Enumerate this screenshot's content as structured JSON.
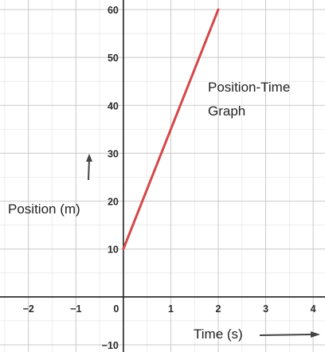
{
  "chart_data": {
    "type": "line",
    "title_lines": [
      "Position-Time",
      "Graph"
    ],
    "xlabel": "Time (s)",
    "ylabel": "Position (m)",
    "xlim": [
      -2.6,
      4.25
    ],
    "ylim": [
      -11.5,
      62
    ],
    "grid": true,
    "x_ticks": [
      -2,
      -1,
      0,
      1,
      2,
      3,
      4
    ],
    "x_tick_labels": [
      "−2",
      "−1",
      "0",
      "1",
      "2",
      "3",
      "4"
    ],
    "y_ticks": [
      -10,
      10,
      20,
      30,
      40,
      50,
      60
    ],
    "y_tick_labels": [
      "−10",
      "10",
      "20",
      "30",
      "40",
      "50",
      "60"
    ],
    "series": [
      {
        "x": [
          0,
          2
        ],
        "y": [
          10,
          60
        ],
        "color": "#d4474a"
      }
    ],
    "colors": {
      "grid": "#c9c9c9",
      "axis": "#222222",
      "arrow": "#444444"
    }
  }
}
